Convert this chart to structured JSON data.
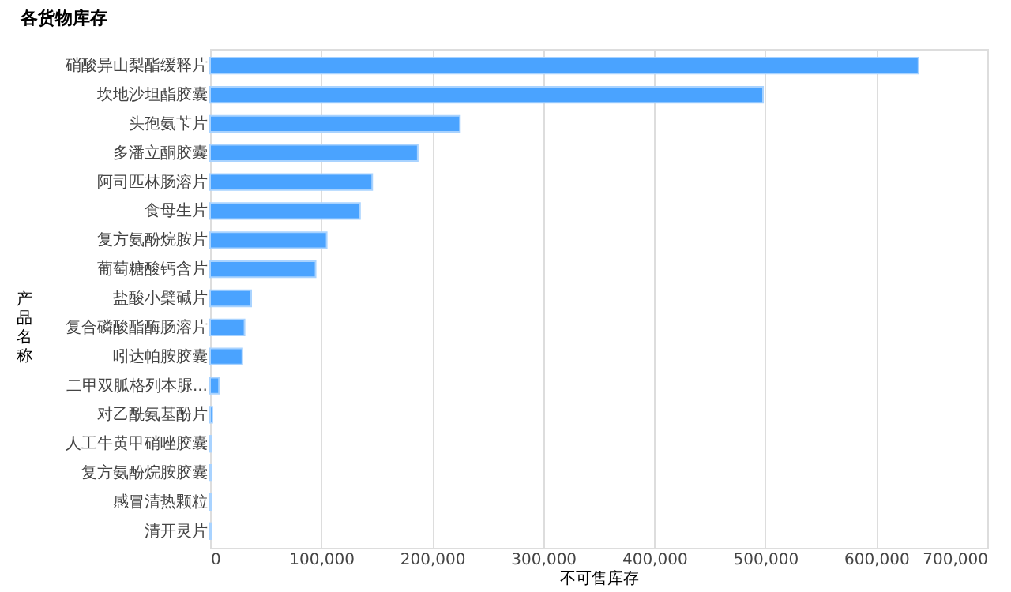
{
  "chart_data": {
    "type": "bar",
    "orientation": "horizontal",
    "title": "各货物库存",
    "xlabel": "不可售库存",
    "ylabel": "产品名称",
    "categories": [
      "硝酸异山梨酯缓释片",
      "坎地沙坦酯胶囊",
      "头孢氨苄片",
      "多潘立酮胶囊",
      "阿司匹林肠溶片",
      "食母生片",
      "复方氨酚烷胺片",
      "葡萄糖酸钙含片",
      "盐酸小檗碱片",
      "复合磷酸酯酶肠溶片",
      "吲达帕胺胶囊",
      "二甲双胍格列本脲...",
      "对乙酰氨基酚片",
      "人工牛黄甲硝唑胶囊",
      "复方氨酚烷胺胶囊",
      "感冒清热颗粒",
      "清开灵片"
    ],
    "values": [
      638000,
      498000,
      225000,
      187000,
      146000,
      135000,
      105000,
      95000,
      37000,
      31000,
      29000,
      8000,
      2000,
      1000,
      1000,
      1000,
      1000
    ],
    "color": "#4aa3ff",
    "xlim": [
      0,
      700000
    ],
    "xticks": [
      0,
      {
        "value": 100000,
        "label": "100,000"
      },
      {
        "value": 200000,
        "label": "200,000"
      },
      {
        "value": 300000,
        "label": "300,000"
      },
      {
        "value": 400000,
        "label": "400,000"
      },
      {
        "value": 500000,
        "label": "500,000"
      },
      {
        "value": 600000,
        "label": "600,000"
      },
      {
        "value": 700000,
        "label": "700,000"
      }
    ],
    "grid": "x"
  }
}
